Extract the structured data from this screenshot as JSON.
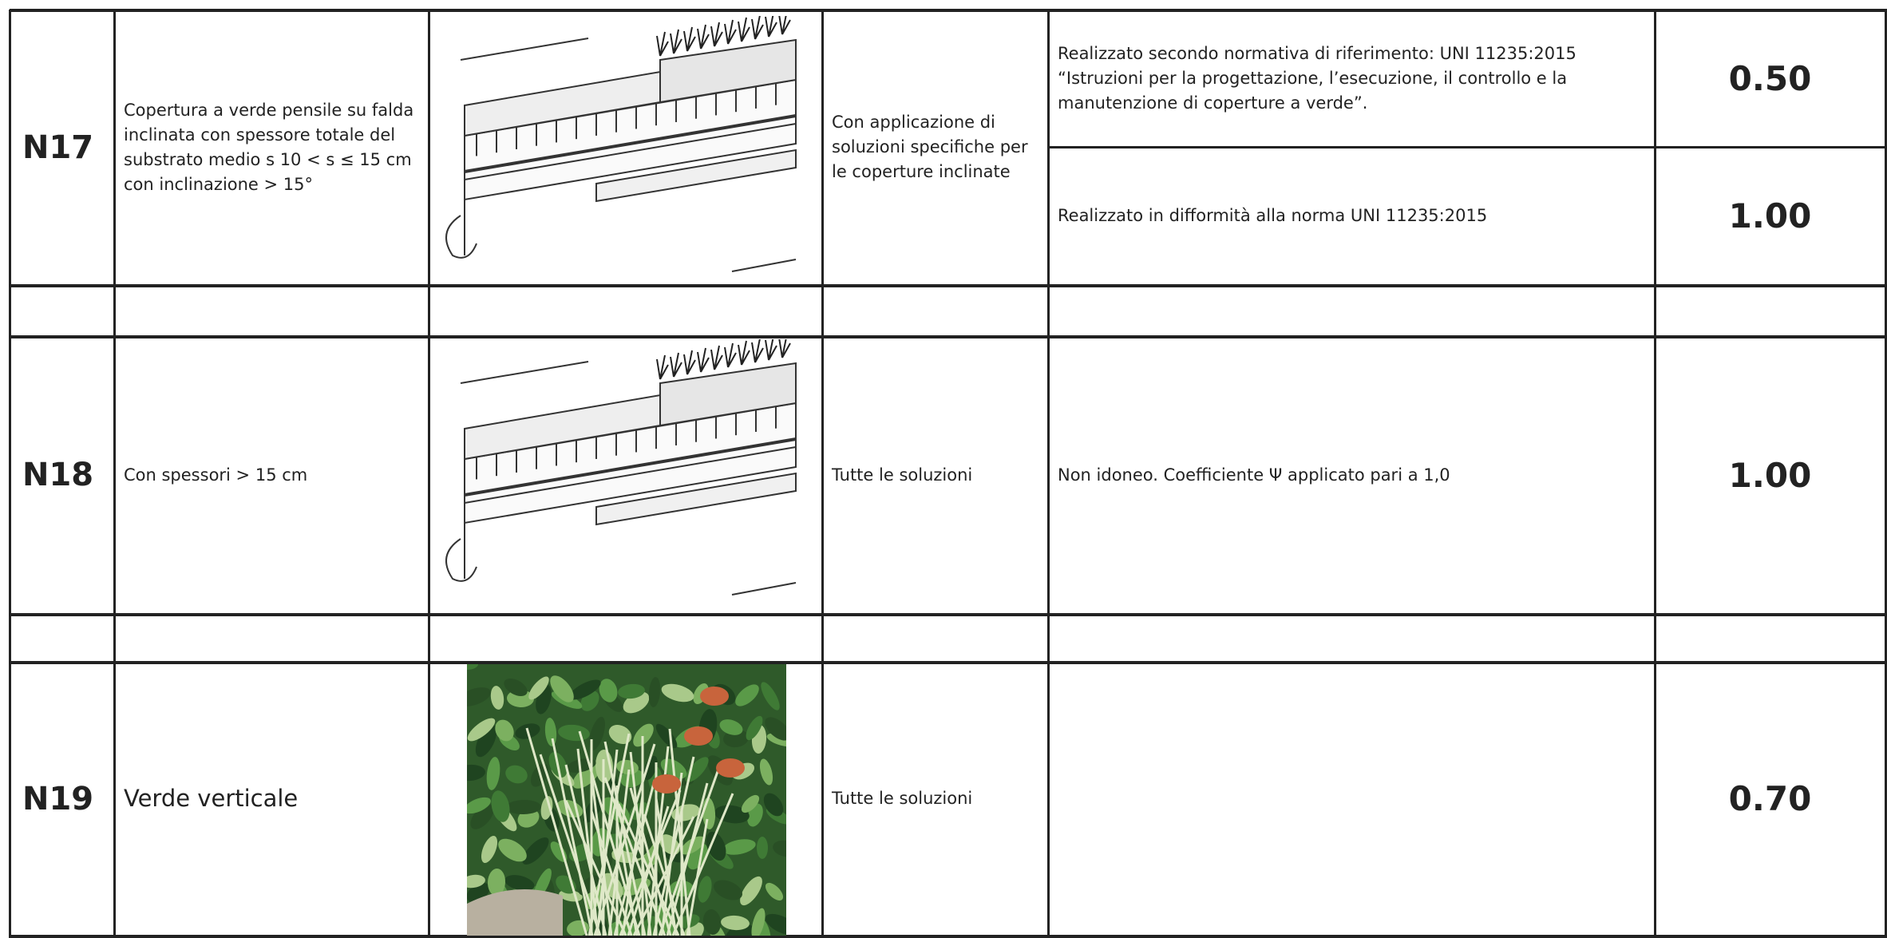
{
  "rows": [
    {
      "code": "N17",
      "description": "Copertura a verde pensile su falda inclinata con spessore totale del substrato medio s 10 < s ≤ 15 cm con inclinazione > 15°",
      "application": "Con applicazione di soluzioni specifiche per le coperture inclinate",
      "outcomes": [
        {
          "note": "Realizzato secondo normativa di riferimento: UNI 11235:2015 “Istruzioni per la progettazione, l’esecuzione, il controllo e la manutenzione di coperture a verde”.",
          "coefficient": "0.50"
        },
        {
          "note": "Realizzato in difformità alla norma UNI 11235:2015",
          "coefficient": "1.00"
        }
      ]
    },
    {
      "code": "N18",
      "description": "Con spessori > 15 cm",
      "application": "Tutte le soluzioni",
      "outcomes": [
        {
          "note": "Non idoneo. Coefficiente Ψ applicato pari a 1,0",
          "coefficient": "1.00"
        }
      ]
    },
    {
      "code": "N19",
      "description": "Verde verticale",
      "application": "Tutte le soluzioni",
      "outcomes": [
        {
          "coefficient": "0.70"
        }
      ]
    }
  ]
}
